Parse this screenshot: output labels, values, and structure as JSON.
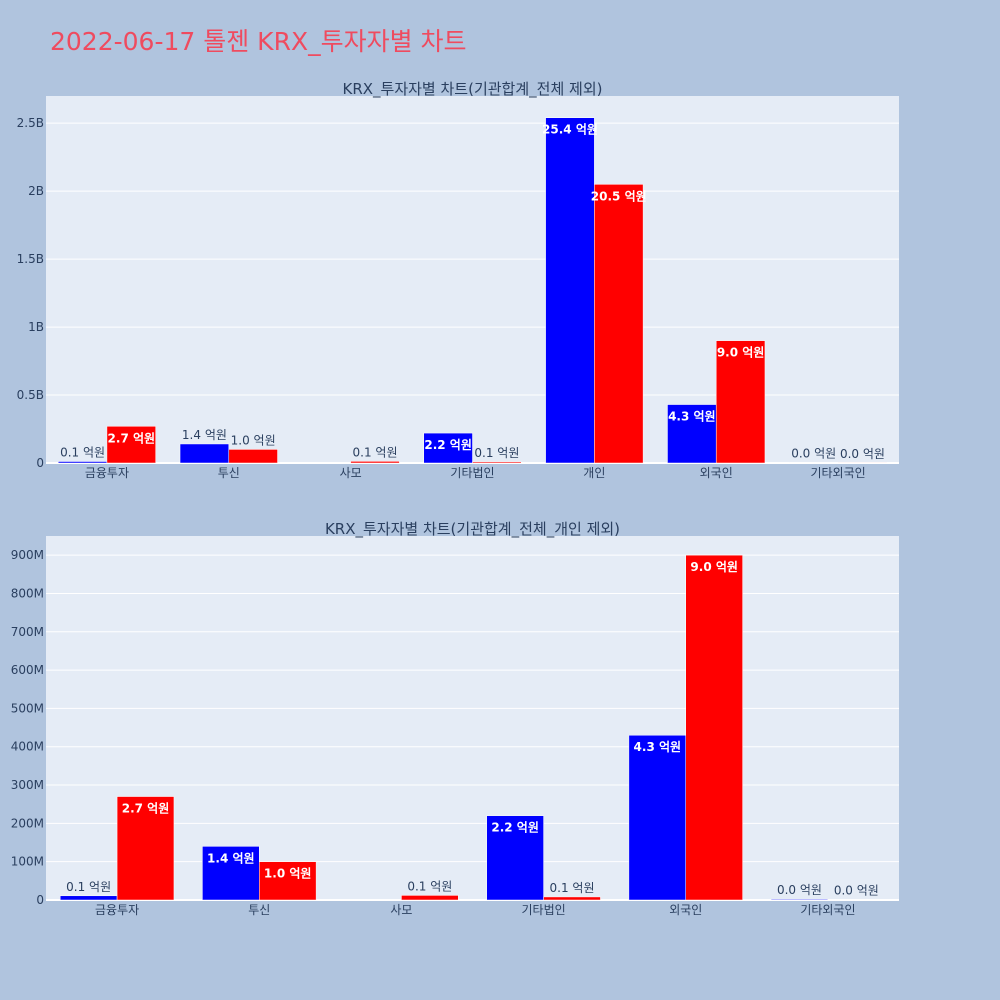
{
  "title": "2022-06-17 톨젠 KRX_투자자별 차트",
  "colors": {
    "buy": "#0000ff",
    "sell": "#ff0000",
    "title": "#ef4b5f",
    "plot_bg": "#e5ecf6",
    "page_bg": "#b0c4de"
  },
  "chart_data": [
    {
      "type": "bar",
      "title": "KRX_투자자별 차트(기관합계_전체 제외)",
      "categories": [
        "금융투자",
        "투신",
        "사모",
        "기타법인",
        "개인",
        "외국인",
        "기타외국인"
      ],
      "series": [
        {
          "color": "#0000ff",
          "values": [
            11000000,
            140000000,
            0,
            220000000,
            2540000000,
            430000000,
            2000000
          ],
          "labels": [
            "0.1 억원",
            "1.4 억원",
            "",
            "2.2 억원",
            "25.4 억원",
            "4.3 억원",
            "0.0 억원"
          ]
        },
        {
          "color": "#ff0000",
          "values": [
            270000000,
            100000000,
            12000000,
            8000000,
            2050000000,
            900000000,
            1000000
          ],
          "labels": [
            "2.7 억원",
            "1.0 억원",
            "0.1 억원",
            "0.1 억원",
            "20.5 억원",
            "9.0 억원",
            "0.0 억원"
          ]
        }
      ],
      "yticks": [
        0,
        500000000,
        1000000000,
        1500000000,
        2000000000,
        2500000000
      ],
      "ytick_labels": [
        "0",
        "0.5B",
        "1B",
        "1.5B",
        "2B",
        "2.5B"
      ],
      "ylim": [
        0,
        2700000000
      ],
      "grid": true
    },
    {
      "type": "bar",
      "title": "KRX_투자자별 차트(기관합계_전체_개인 제외)",
      "categories": [
        "금융투자",
        "투신",
        "사모",
        "기타법인",
        "외국인",
        "기타외국인"
      ],
      "series": [
        {
          "color": "#0000ff",
          "values": [
            11000000,
            140000000,
            0,
            220000000,
            430000000,
            2000000
          ],
          "labels": [
            "0.1 억원",
            "1.4 억원",
            "",
            "2.2 억원",
            "4.3 억원",
            "0.0 억원"
          ]
        },
        {
          "color": "#ff0000",
          "values": [
            270000000,
            100000000,
            12000000,
            8000000,
            900000000,
            1000000
          ],
          "labels": [
            "2.7 억원",
            "1.0 억원",
            "0.1 억원",
            "0.1 억원",
            "9.0 억원",
            "0.0 억원"
          ]
        }
      ],
      "yticks": [
        0,
        100000000,
        200000000,
        300000000,
        400000000,
        500000000,
        600000000,
        700000000,
        800000000,
        900000000
      ],
      "ytick_labels": [
        "0",
        "100M",
        "200M",
        "300M",
        "400M",
        "500M",
        "600M",
        "700M",
        "800M",
        "900M"
      ],
      "ylim": [
        0,
        950000000
      ],
      "grid": true
    }
  ]
}
